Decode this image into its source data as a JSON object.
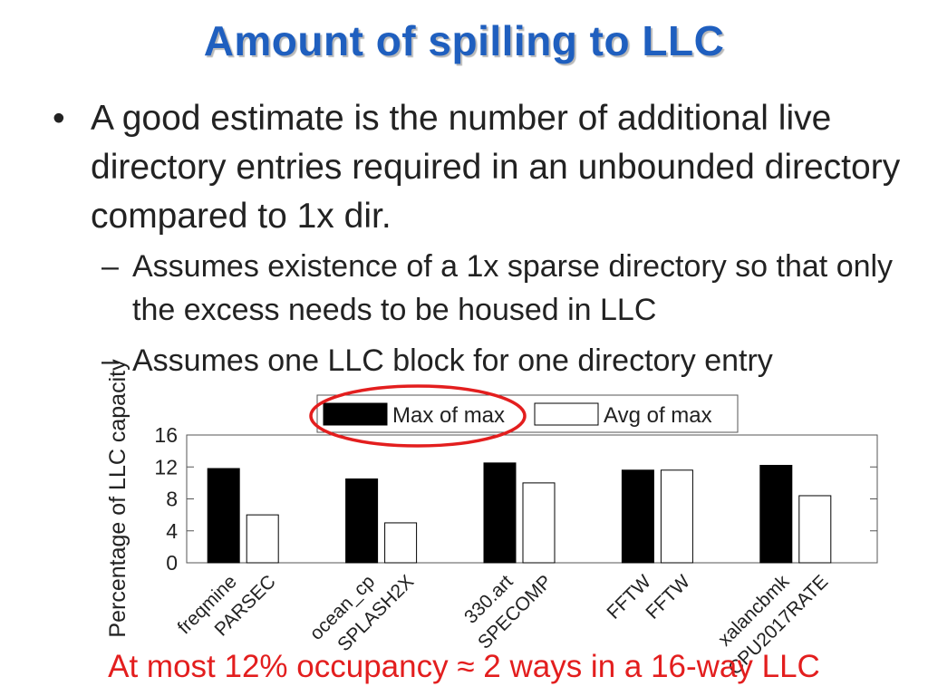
{
  "slide": {
    "title": "Amount of spilling to LLC",
    "bullets": [
      "A good estimate is the number of additional live directory entries required in an unbounded directory compared to 1x dir."
    ],
    "sub_bullets": [
      "Assumes existence of a 1x sparse directory so that only the excess needs to be housed in LLC",
      "Assumes one LLC block for one directory entry"
    ],
    "footer": "At most 12% occupancy ≈ 2 ways in a 16-way LLC"
  },
  "chart_data": {
    "type": "bar",
    "ylabel": "Percentage of LLC capacity",
    "xlabel": "",
    "ylim": [
      0,
      16
    ],
    "yticks": [
      0,
      4,
      8,
      12,
      16
    ],
    "groups": [
      {
        "benchmark": "freqmine",
        "suite": "PARSEC"
      },
      {
        "benchmark": "ocean_cp",
        "suite": "SPLASH2X"
      },
      {
        "benchmark": "330.art",
        "suite": "SPECOMP"
      },
      {
        "benchmark": "FFTW",
        "suite": "FFTW"
      },
      {
        "benchmark": "xalancbmk",
        "suite": "CPU2017RATE"
      }
    ],
    "series": [
      {
        "name": "Max of max",
        "color": "#000000",
        "values": [
          11.8,
          10.5,
          12.5,
          11.6,
          12.2
        ]
      },
      {
        "name": "Avg of max",
        "color": "#ffffff",
        "values": [
          6.0,
          5.0,
          10.0,
          11.6,
          8.4
        ]
      }
    ],
    "legend_position": "top",
    "highlight_color": "#e31e1e",
    "grid": false
  }
}
